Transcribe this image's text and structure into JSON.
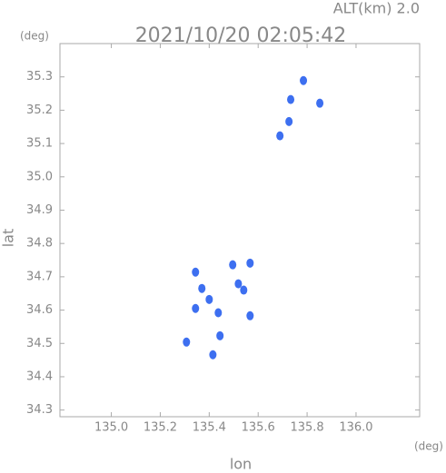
{
  "chart_data": {
    "type": "scatter",
    "title": "2021/10/20 02:05:42",
    "subtitle": "ALT(km) 2.0",
    "x_label": "lon",
    "y_label": "lat",
    "x_unit": "(deg)",
    "y_unit": "(deg)",
    "xlim": [
      134.79,
      136.26
    ],
    "ylim": [
      34.28,
      35.4
    ],
    "xticks": [
      {
        "value": 135,
        "label": "135.0"
      },
      135.2,
      135.4,
      135.6,
      135.8,
      {
        "value": 136,
        "label": "136.0"
      }
    ],
    "yticks": [
      34.3,
      34.4,
      34.5,
      34.6,
      34.7,
      34.8,
      34.9,
      {
        "value": 35,
        "label": "35.0"
      },
      35.1,
      35.2,
      35.3
    ],
    "series": [
      {
        "color": "#3d6ff0",
        "x": [
          135.785,
          135.733,
          135.852,
          135.726,
          135.689,
          135.4,
          135.37,
          135.344,
          135.344,
          135.496,
          135.567,
          135.519,
          135.437,
          135.444,
          135.307,
          135.415,
          135.541,
          135.567
        ],
        "values": [
          35.289,
          35.232,
          35.221,
          35.166,
          35.123,
          34.632,
          34.665,
          34.605,
          34.714,
          34.736,
          34.741,
          34.679,
          34.592,
          34.523,
          34.504,
          34.466,
          34.66,
          34.583
        ]
      }
    ]
  }
}
